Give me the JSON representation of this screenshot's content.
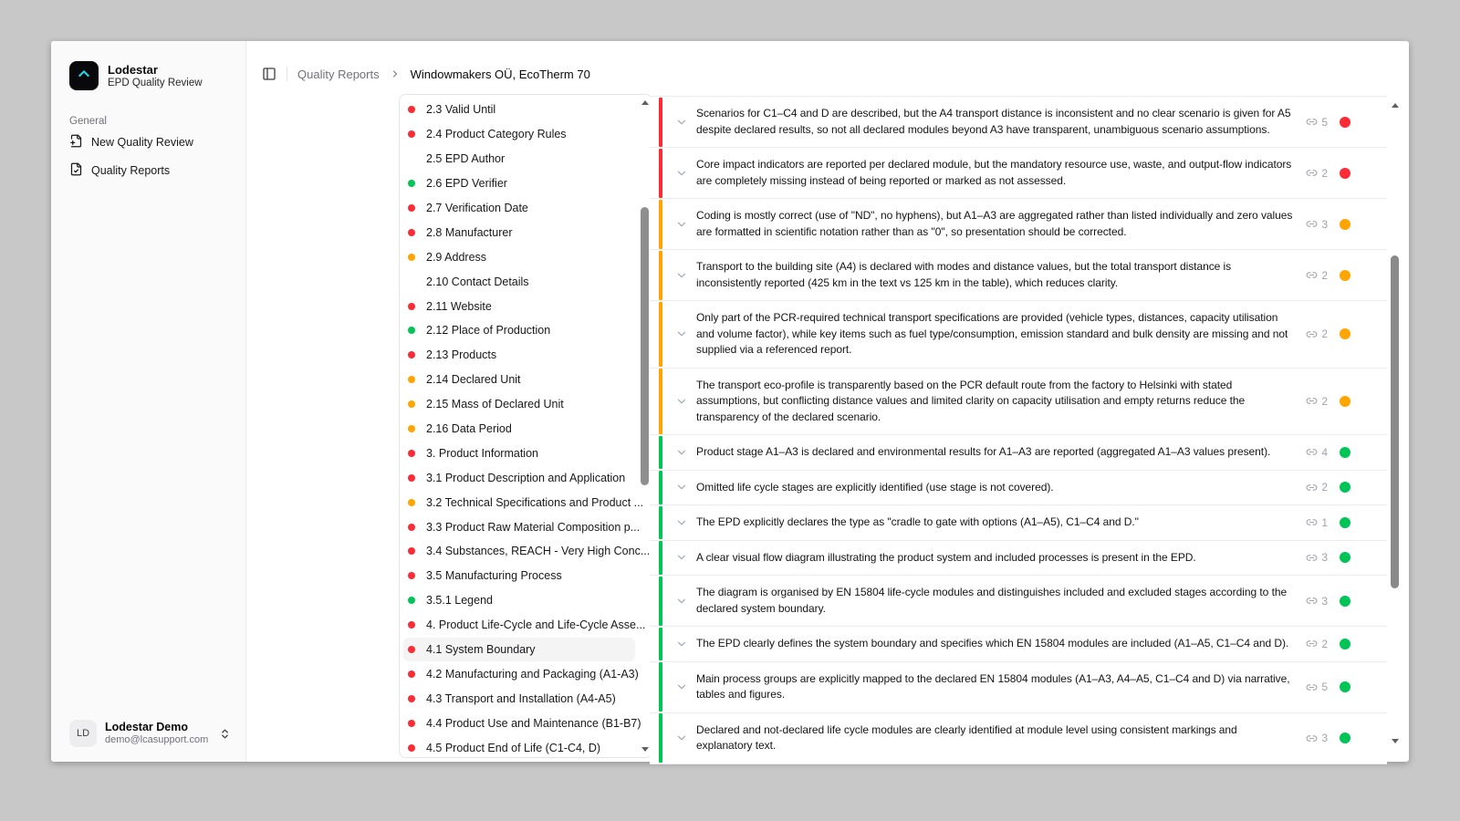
{
  "app": {
    "name": "Lodestar",
    "subtitle": "EPD Quality Review"
  },
  "sidebar": {
    "section_label": "General",
    "items": [
      {
        "label": "New Quality Review",
        "icon": "file-plus-icon"
      },
      {
        "label": "Quality Reports",
        "icon": "file-check-icon"
      }
    ],
    "user": {
      "initials": "LD",
      "name": "Lodestar Demo",
      "email": "demo@lcasupport.com"
    }
  },
  "breadcrumb": {
    "parent": "Quality Reports",
    "current": "Windowmakers OÜ, EcoTherm 70"
  },
  "colors": {
    "red": "#fb2c36",
    "amber": "#ffa400",
    "green": "#00c455",
    "accent": "#2ad4e6"
  },
  "outline": {
    "items": [
      {
        "label": "2.3 Valid Until",
        "status": "red"
      },
      {
        "label": "2.4 Product Category Rules",
        "status": "red"
      },
      {
        "label": "2.5 EPD Author",
        "status": "none"
      },
      {
        "label": "2.6 EPD Verifier",
        "status": "green"
      },
      {
        "label": "2.7 Verification Date",
        "status": "red"
      },
      {
        "label": "2.8 Manufacturer",
        "status": "red"
      },
      {
        "label": "2.9 Address",
        "status": "amber"
      },
      {
        "label": "2.10 Contact Details",
        "status": "none"
      },
      {
        "label": "2.11 Website",
        "status": "red"
      },
      {
        "label": "2.12 Place of Production",
        "status": "green"
      },
      {
        "label": "2.13 Products",
        "status": "red"
      },
      {
        "label": "2.14 Declared Unit",
        "status": "amber"
      },
      {
        "label": "2.15 Mass of Declared Unit",
        "status": "amber"
      },
      {
        "label": "2.16 Data Period",
        "status": "amber"
      },
      {
        "label": "3. Product Information",
        "status": "red"
      },
      {
        "label": "3.1 Product Description and Application",
        "status": "red"
      },
      {
        "label": "3.2 Technical Specifications and Product ...",
        "status": "amber"
      },
      {
        "label": "3.3 Product Raw Material Composition p...",
        "status": "red"
      },
      {
        "label": "3.4 Substances, REACH - Very High Conc...",
        "status": "red"
      },
      {
        "label": "3.5 Manufacturing Process",
        "status": "red"
      },
      {
        "label": "3.5.1 Legend",
        "status": "green"
      },
      {
        "label": "4. Product Life-Cycle and Life-Cycle Asse...",
        "status": "red"
      },
      {
        "label": "4.1 System Boundary",
        "status": "red",
        "selected": true
      },
      {
        "label": "4.2 Manufacturing and Packaging (A1-A3)",
        "status": "red"
      },
      {
        "label": "4.3 Transport and Installation (A4-A5)",
        "status": "red"
      },
      {
        "label": "4.4 Product Use and Maintenance (B1-B7)",
        "status": "red"
      },
      {
        "label": "4.5 Product End of Life (C1-C4, D)",
        "status": "red"
      }
    ]
  },
  "findings": {
    "rows": [
      {
        "text": "Scenarios for C1–C4 and D are described, but the A4 transport distance is inconsistent and no clear scenario is given for A5 despite declared results, so not all declared modules beyond A3 have transparent, unambiguous scenario assumptions.",
        "links": 5,
        "status": "red"
      },
      {
        "text": "Core impact indicators are reported per declared module, but the mandatory resource use, waste, and output-flow indicators are completely missing instead of being reported or marked as not assessed.",
        "links": 2,
        "status": "red"
      },
      {
        "text": "Coding is mostly correct (use of \"ND\", no hyphens), but A1–A3 are aggregated rather than listed individually and zero values are formatted in scientific notation rather than as \"0\", so presentation should be corrected.",
        "links": 3,
        "status": "amber"
      },
      {
        "text": "Transport to the building site (A4) is declared with modes and distance values, but the total transport distance is inconsistently reported (425 km in the text vs 125 km in the table), which reduces clarity.",
        "links": 2,
        "status": "amber"
      },
      {
        "text": "Only part of the PCR-required technical transport specifications are provided (vehicle types, distances, capacity utilisation and volume factor), while key items such as fuel type/consumption, emission standard and bulk density are missing and not supplied via a referenced report.",
        "links": 2,
        "status": "amber"
      },
      {
        "text": "The transport eco-profile is transparently based on the PCR default route from the factory to Helsinki with stated assumptions, but conflicting distance values and limited clarity on capacity utilisation and empty returns reduce the transparency of the declared scenario.",
        "links": 2,
        "status": "amber"
      },
      {
        "text": "Product stage A1–A3 is declared and environmental results for A1–A3 are reported (aggregated A1–A3 values present).",
        "links": 4,
        "status": "green"
      },
      {
        "text": "Omitted life cycle stages are explicitly identified (use stage is not covered).",
        "links": 2,
        "status": "green"
      },
      {
        "text": "The EPD explicitly declares the type as \"cradle to gate with options (A1–A5), C1–C4 and D.\"",
        "links": 1,
        "status": "green"
      },
      {
        "text": "A clear visual flow diagram illustrating the product system and included processes is present in the EPD.",
        "links": 3,
        "status": "green"
      },
      {
        "text": "The diagram is organised by EN 15804 life-cycle modules and distinguishes included and excluded stages according to the declared system boundary.",
        "links": 3,
        "status": "green"
      },
      {
        "text": "The EPD clearly defines the system boundary and specifies which EN 15804 modules are included (A1–A5, C1–C4 and D).",
        "links": 2,
        "status": "green"
      },
      {
        "text": "Main process groups are explicitly mapped to the declared EN 15804 modules (A1–A3, A4–A5, C1–C4 and D) via narrative, tables and figures.",
        "links": 5,
        "status": "green"
      },
      {
        "text": "Declared and not-declared life cycle modules are clearly identified at module level using consistent markings and explanatory text.",
        "links": 3,
        "status": "green"
      }
    ]
  }
}
